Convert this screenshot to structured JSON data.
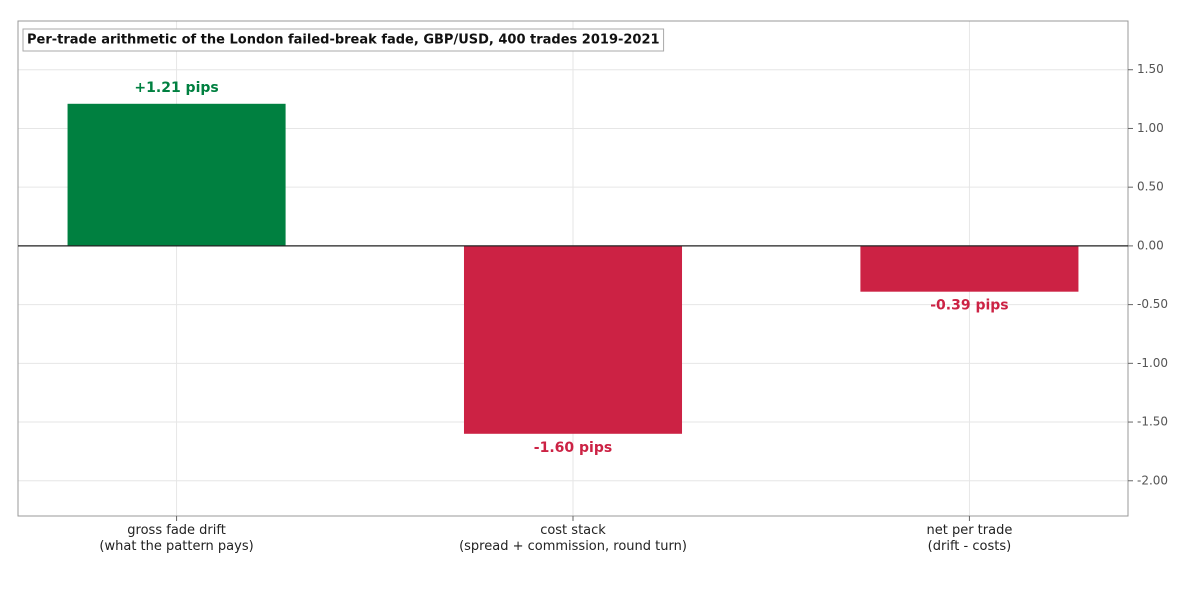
{
  "chart_data": {
    "type": "bar",
    "title": "Per-trade arithmetic of the London failed-break fade, GBP/USD, 400 trades 2019-2021",
    "categories": [
      "gross fade drift\n(what the pattern pays)",
      "cost stack\n(spread + commission, round turn)",
      "net per trade\n(drift - costs)"
    ],
    "values": [
      1.21,
      -1.6,
      -0.39
    ],
    "value_labels": [
      "+1.21 pips",
      "-1.60 pips",
      "-0.39 pips"
    ],
    "colors": [
      "#008040",
      "#cc2244",
      "#cc2244"
    ],
    "ylim": [
      -2.3,
      1.915
    ],
    "yticks": [
      {
        "value": 1.5,
        "label": "1.50"
      },
      {
        "value": 1,
        "label": "1.00"
      },
      {
        "value": 0.5,
        "label": "0.50"
      },
      {
        "value": 0,
        "label": "0.00"
      },
      {
        "value": -0.5,
        "label": "-0.50"
      },
      {
        "value": -1,
        "label": "-1.00"
      },
      {
        "value": -1.5,
        "label": "-1.50"
      },
      {
        "value": -2,
        "label": "-2.00"
      }
    ],
    "grid": true
  }
}
